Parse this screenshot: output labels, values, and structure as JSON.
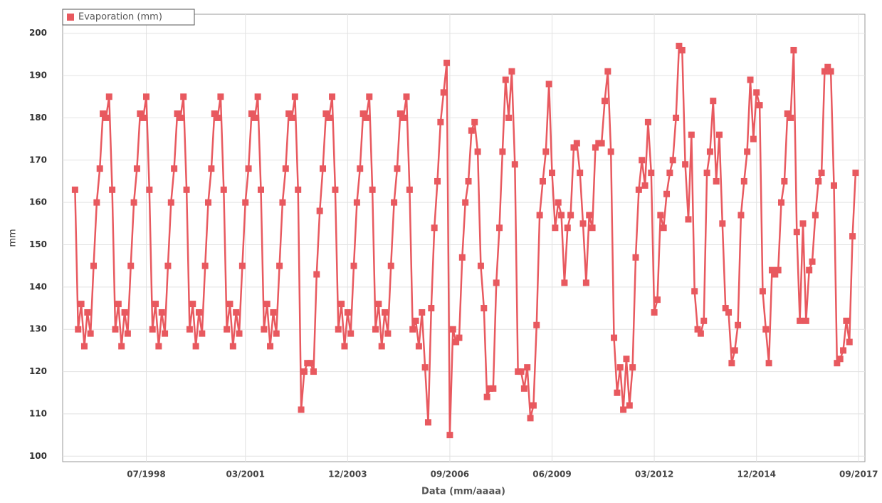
{
  "chart_data": {
    "type": "line",
    "xlabel": "Data (mm/aaaa)",
    "ylabel": "mm",
    "ylim": [
      98.7,
      204.5
    ],
    "yticks": [
      100,
      110,
      120,
      130,
      140,
      150,
      160,
      170,
      180,
      190,
      200
    ],
    "xlim": [
      "04/1996",
      "11/2017"
    ],
    "xticks": [
      "07/1998",
      "03/2001",
      "12/2003",
      "09/2006",
      "06/2009",
      "03/2012",
      "12/2014",
      "09/2017"
    ],
    "grid": true,
    "legend": "top-left",
    "x": [
      "08/1996",
      "09/1996",
      "10/1996",
      "11/1996",
      "12/1996",
      "01/1997",
      "02/1997",
      "03/1997",
      "04/1997",
      "05/1997",
      "06/1997",
      "07/1997",
      "08/1997",
      "09/1997",
      "10/1997",
      "11/1997",
      "12/1997",
      "01/1998",
      "02/1998",
      "03/1998",
      "04/1998",
      "05/1998",
      "06/1998",
      "07/1998",
      "08/1998",
      "09/1998",
      "10/1998",
      "11/1998",
      "12/1998",
      "01/1999",
      "02/1999",
      "03/1999",
      "04/1999",
      "05/1999",
      "06/1999",
      "07/1999",
      "08/1999",
      "09/1999",
      "10/1999",
      "11/1999",
      "12/1999",
      "01/2000",
      "02/2000",
      "03/2000",
      "04/2000",
      "05/2000",
      "06/2000",
      "07/2000",
      "08/2000",
      "09/2000",
      "10/2000",
      "11/2000",
      "12/2000",
      "01/2001",
      "02/2001",
      "03/2001",
      "04/2001",
      "05/2001",
      "06/2001",
      "07/2001",
      "08/2001",
      "09/2001",
      "10/2001",
      "11/2001",
      "12/2001",
      "01/2002",
      "02/2002",
      "03/2002",
      "04/2002",
      "05/2002",
      "06/2002",
      "07/2002",
      "08/2002",
      "09/2002",
      "10/2002",
      "11/2002",
      "12/2002",
      "01/2003",
      "02/2003",
      "03/2003",
      "04/2003",
      "05/2003",
      "06/2003",
      "07/2003",
      "08/2003",
      "09/2003",
      "10/2003",
      "11/2003",
      "12/2003",
      "01/2004",
      "02/2004",
      "03/2004",
      "04/2004",
      "05/2004",
      "06/2004",
      "07/2004",
      "08/2004",
      "09/2004",
      "10/2004",
      "11/2004",
      "12/2004",
      "01/2005",
      "02/2005",
      "03/2005",
      "04/2005",
      "05/2005",
      "06/2005",
      "07/2005",
      "08/2005",
      "09/2005",
      "10/2005",
      "11/2005",
      "12/2005",
      "01/2006",
      "02/2006",
      "03/2006",
      "04/2006",
      "05/2006",
      "06/2006",
      "07/2006",
      "08/2006",
      "09/2006",
      "10/2006",
      "11/2006",
      "12/2006",
      "01/2007",
      "02/2007",
      "03/2007",
      "04/2007",
      "05/2007",
      "06/2007",
      "07/2007",
      "08/2007",
      "09/2007",
      "10/2007",
      "11/2007",
      "12/2007",
      "01/2008",
      "02/2008",
      "03/2008",
      "04/2008",
      "05/2008",
      "06/2008",
      "07/2008",
      "08/2008",
      "09/2008",
      "10/2008",
      "11/2008",
      "12/2008",
      "01/2009",
      "02/2009",
      "03/2009",
      "04/2009",
      "05/2009",
      "06/2009",
      "07/2009",
      "08/2009",
      "09/2009",
      "10/2009",
      "11/2009",
      "12/2009",
      "01/2010",
      "02/2010",
      "03/2010",
      "04/2010",
      "05/2010",
      "06/2010",
      "07/2010",
      "08/2010",
      "09/2010",
      "10/2010",
      "11/2010",
      "12/2010",
      "01/2011",
      "02/2011",
      "03/2011",
      "04/2011",
      "05/2011",
      "06/2011",
      "07/2011",
      "08/2011",
      "09/2011",
      "10/2011",
      "11/2011",
      "12/2011",
      "01/2012",
      "02/2012",
      "03/2012",
      "04/2012",
      "05/2012",
      "06/2012",
      "07/2012",
      "08/2012",
      "09/2012",
      "10/2012",
      "11/2012",
      "12/2012",
      "01/2013",
      "02/2013",
      "03/2013",
      "04/2013",
      "05/2013",
      "06/2013",
      "07/2013",
      "08/2013",
      "09/2013",
      "10/2013",
      "11/2013",
      "12/2013",
      "01/2014",
      "02/2014",
      "03/2014",
      "04/2014",
      "05/2014",
      "06/2014",
      "07/2014",
      "08/2014",
      "09/2014",
      "10/2014",
      "11/2014",
      "12/2014",
      "01/2015",
      "02/2015",
      "03/2015",
      "04/2015",
      "05/2015",
      "06/2015",
      "07/2015",
      "08/2015",
      "09/2015",
      "10/2015",
      "11/2015",
      "12/2015",
      "01/2016",
      "02/2016",
      "03/2016",
      "04/2016",
      "05/2016",
      "06/2016",
      "07/2016",
      "08/2016",
      "09/2016",
      "10/2016",
      "11/2016",
      "12/2016",
      "01/2017",
      "02/2017",
      "03/2017",
      "04/2017",
      "05/2017",
      "06/2017",
      "07/2017",
      "08/2017"
    ],
    "series": [
      {
        "name": "Evaporation (mm)",
        "color": "#e8595f",
        "values": [
          163,
          130,
          136,
          126,
          134,
          129,
          145,
          160,
          168,
          181,
          180,
          185,
          163,
          130,
          136,
          126,
          134,
          129,
          145,
          160,
          168,
          181,
          180,
          185,
          163,
          130,
          136,
          126,
          134,
          129,
          145,
          160,
          168,
          181,
          180,
          185,
          163,
          130,
          136,
          126,
          134,
          129,
          145,
          160,
          168,
          181,
          180,
          185,
          163,
          130,
          136,
          126,
          134,
          129,
          145,
          160,
          168,
          181,
          180,
          185,
          163,
          130,
          136,
          126,
          134,
          129,
          145,
          160,
          168,
          181,
          180,
          185,
          163,
          111,
          120,
          122,
          122,
          120,
          143,
          158,
          168,
          181,
          180,
          185,
          163,
          130,
          136,
          126,
          134,
          129,
          145,
          160,
          168,
          181,
          180,
          185,
          163,
          130,
          136,
          126,
          134,
          129,
          145,
          160,
          168,
          181,
          180,
          185,
          163,
          130,
          132,
          126,
          134,
          121,
          108,
          135,
          154,
          165,
          179,
          186,
          193,
          105,
          130,
          127,
          128,
          147,
          160,
          165,
          177,
          179,
          172,
          145,
          135,
          114,
          116,
          116,
          141,
          154,
          172,
          189,
          180,
          191,
          169,
          120,
          120,
          116,
          121,
          109,
          112,
          131,
          157,
          165,
          172,
          188,
          167,
          154,
          160,
          157,
          141,
          154,
          157,
          173,
          174,
          167,
          155,
          141,
          157,
          154,
          173,
          174,
          174,
          184,
          191,
          172,
          128,
          115,
          121,
          111,
          123,
          112,
          121,
          147,
          163,
          170,
          164,
          179,
          167,
          134,
          137,
          157,
          154,
          162,
          167,
          170,
          180,
          197,
          196,
          169,
          156,
          176,
          139,
          130,
          129,
          132,
          167,
          172,
          184,
          165,
          176,
          155,
          135,
          134,
          122,
          125,
          131,
          157,
          165,
          172,
          189,
          175,
          186,
          183,
          139,
          130,
          122,
          144,
          143,
          144,
          160,
          165,
          181,
          180,
          196,
          153,
          132,
          155,
          132,
          144,
          146,
          157,
          165,
          167,
          191,
          192,
          191,
          164,
          122,
          123,
          125,
          132,
          127,
          152,
          167
        ]
      }
    ]
  }
}
